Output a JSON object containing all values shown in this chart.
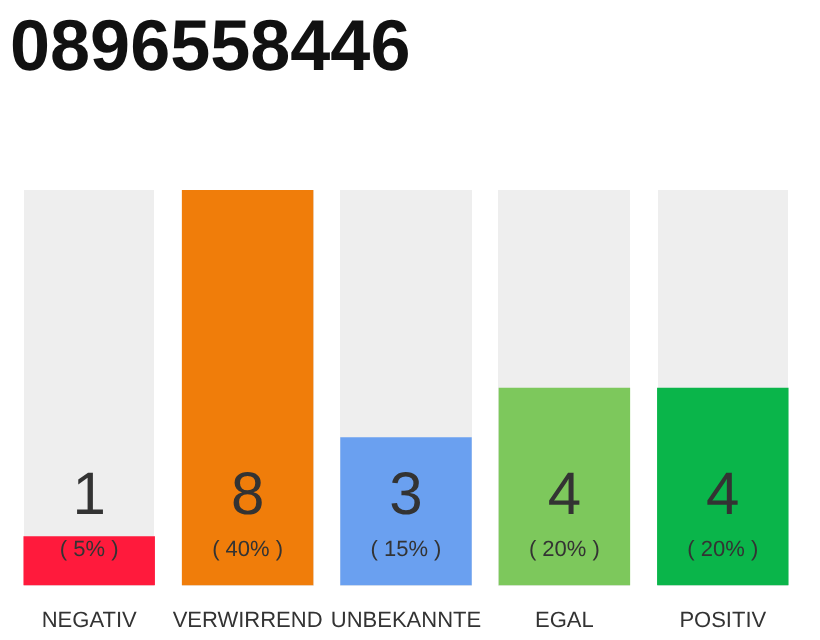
{
  "chart_data": {
    "type": "bar",
    "title": "0896558446",
    "categories": [
      "NEGATIV",
      "VERWIRREND",
      "UNBEKANNTE",
      "EGAL",
      "POSITIV"
    ],
    "values": [
      1,
      8,
      3,
      4,
      4
    ],
    "colors": [
      "#ff1a3c",
      "#f07d0a",
      "#6aa0f0",
      "#7dc85c",
      "#0ab54a"
    ],
    "value_labels": [
      "1\n( 5% )",
      "8\n( 40% )",
      "3\n( 15% )",
      "4\n( 20% )",
      "4\n( 20% )"
    ]
  }
}
